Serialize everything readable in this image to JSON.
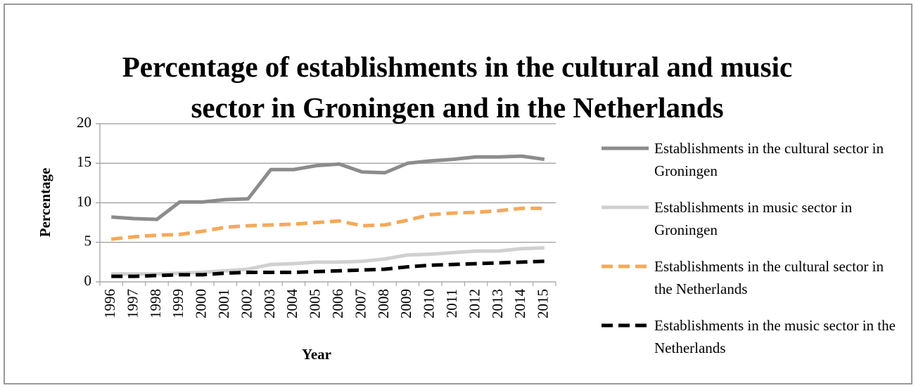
{
  "chart_data": {
    "type": "line",
    "title": "Percentage of establishments in the cultural and music sector in Groningen and in the Netherlands",
    "x_label": "Year",
    "y_label": "Percentage",
    "categories": [
      "1996",
      "1997",
      "1998",
      "1999",
      "2000",
      "2001",
      "2002",
      "2003",
      "2004",
      "2005",
      "2006",
      "2007",
      "2008",
      "2009",
      "2010",
      "2011",
      "2012",
      "2013",
      "2014",
      "2015"
    ],
    "series": [
      {
        "name": "Establishments in the cultural sector in Groningen",
        "color": "#8c8c8c",
        "dashed": false,
        "values": [
          8.2,
          8.0,
          7.9,
          10.1,
          10.1,
          10.4,
          10.5,
          14.2,
          14.2,
          14.7,
          14.9,
          13.9,
          13.8,
          15.0,
          15.3,
          15.5,
          15.8,
          15.8,
          15.9,
          15.5
        ]
      },
      {
        "name": "Establishments in music sector in Groningen",
        "color": "#d0d0d0",
        "dashed": false,
        "values": [
          1.0,
          1.0,
          1.0,
          1.1,
          1.2,
          1.4,
          1.6,
          2.2,
          2.3,
          2.5,
          2.5,
          2.6,
          2.9,
          3.4,
          3.5,
          3.7,
          3.9,
          3.9,
          4.2,
          4.3
        ]
      },
      {
        "name": "Establishments in the cultural sector in the Netherlands",
        "color": "#f5a95a",
        "dashed": true,
        "values": [
          5.4,
          5.7,
          5.9,
          6.0,
          6.4,
          6.9,
          7.1,
          7.2,
          7.3,
          7.5,
          7.7,
          7.1,
          7.2,
          7.8,
          8.5,
          8.7,
          8.8,
          9.0,
          9.3,
          9.3
        ]
      },
      {
        "name": "Establishments in the music sector in the Netherlands",
        "color": "#000000",
        "dashed": true,
        "values": [
          0.7,
          0.7,
          0.8,
          0.9,
          0.9,
          1.1,
          1.2,
          1.2,
          1.2,
          1.3,
          1.4,
          1.5,
          1.6,
          1.9,
          2.1,
          2.2,
          2.3,
          2.4,
          2.5,
          2.6
        ]
      }
    ],
    "ylim": [
      0,
      20
    ],
    "yticks": [
      0,
      5,
      10,
      15,
      20
    ],
    "grid": true,
    "legend": "right"
  }
}
